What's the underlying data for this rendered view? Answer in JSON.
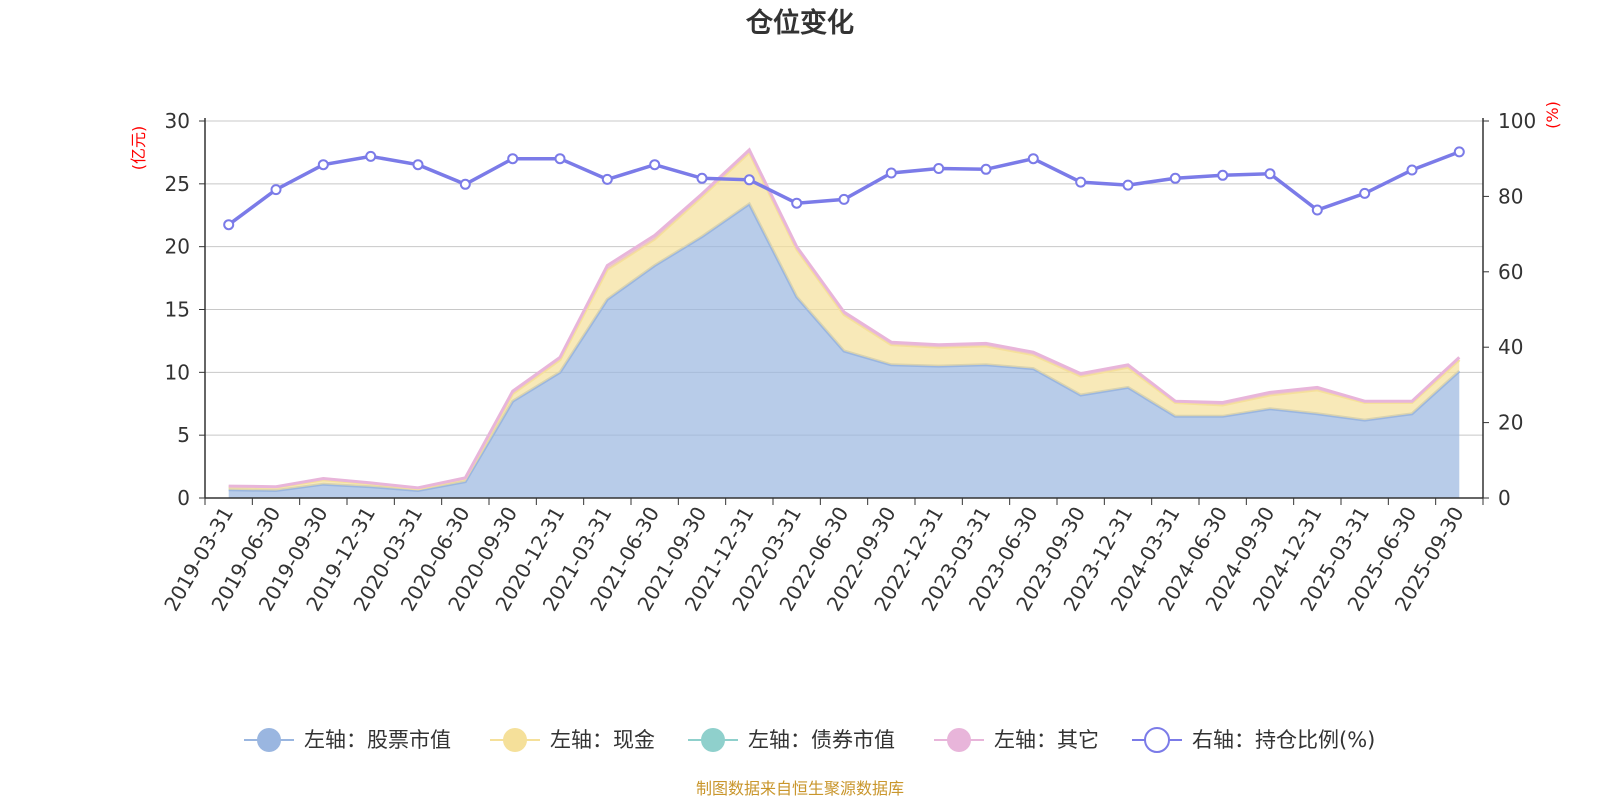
{
  "chart_data": {
    "type": "area",
    "title": "仓位变化",
    "left_axis_unit": "(亿元)",
    "right_axis_unit": "(%)",
    "left_ylim": [
      0,
      30
    ],
    "left_yticks": [
      0,
      5,
      10,
      15,
      20,
      25,
      30
    ],
    "right_ylim": [
      0,
      100
    ],
    "right_yticks": [
      0,
      20,
      40,
      60,
      80,
      100
    ],
    "categories": [
      "2019-03-31",
      "2019-06-30",
      "2019-09-30",
      "2019-12-31",
      "2020-03-31",
      "2020-06-30",
      "2020-09-30",
      "2020-12-31",
      "2021-03-31",
      "2021-06-30",
      "2021-09-30",
      "2021-12-31",
      "2022-03-31",
      "2022-06-30",
      "2022-09-30",
      "2022-12-31",
      "2023-03-31",
      "2023-06-30",
      "2023-09-30",
      "2023-12-31",
      "2024-03-31",
      "2024-06-30",
      "2024-09-30",
      "2024-12-31",
      "2025-03-31",
      "2025-06-30",
      "2025-09-30"
    ],
    "series": [
      {
        "name": "左轴：股票市值",
        "axis": "left",
        "kind": "stacked-area",
        "color": "#9ab6e0",
        "values": [
          0.65,
          0.6,
          1.1,
          0.9,
          0.6,
          1.3,
          7.7,
          10.0,
          15.8,
          18.5,
          20.8,
          23.4,
          16.0,
          11.7,
          10.6,
          10.5,
          10.6,
          10.3,
          8.2,
          8.8,
          6.5,
          6.5,
          7.1,
          6.7,
          6.2,
          6.7,
          10.1
        ]
      },
      {
        "name": "左轴：现金",
        "axis": "left",
        "kind": "stacked-area",
        "color": "#f5e09a",
        "values": [
          0.25,
          0.25,
          0.35,
          0.25,
          0.15,
          0.25,
          0.6,
          1.0,
          2.4,
          2.1,
          3.2,
          4.1,
          3.8,
          2.9,
          1.6,
          1.5,
          1.5,
          1.1,
          1.5,
          1.6,
          1.1,
          0.9,
          1.1,
          1.9,
          1.4,
          0.9,
          0.9
        ]
      },
      {
        "name": "左轴：债券市值",
        "axis": "left",
        "kind": "stacked-area",
        "color": "#8fd0cc",
        "values": [
          0,
          0,
          0,
          0,
          0,
          0,
          0,
          0,
          0,
          0,
          0,
          0,
          0,
          0,
          0,
          0,
          0,
          0,
          0,
          0,
          0,
          0,
          0,
          0,
          0,
          0,
          0
        ]
      },
      {
        "name": "左轴：其它",
        "axis": "left",
        "kind": "stacked-area",
        "color": "#e8b5da",
        "values": [
          0.05,
          0.05,
          0.1,
          0.05,
          0.05,
          0.05,
          0.2,
          0.2,
          0.3,
          0.3,
          0.2,
          0.2,
          0.2,
          0.2,
          0.2,
          0.2,
          0.2,
          0.2,
          0.2,
          0.2,
          0.1,
          0.2,
          0.2,
          0.2,
          0.1,
          0.1,
          0.2
        ]
      },
      {
        "name": "右轴：持仓比例(%)",
        "axis": "right",
        "kind": "line",
        "color": "#7b7be8",
        "values": [
          72.5,
          81.8,
          88.4,
          90.6,
          88.4,
          83.2,
          90.0,
          90.0,
          84.5,
          88.4,
          84.8,
          84.4,
          78.2,
          79.2,
          86.2,
          87.4,
          87.2,
          90.0,
          83.8,
          83.0,
          84.8,
          85.6,
          86.0,
          76.4,
          80.8,
          87.0,
          91.8
        ]
      }
    ],
    "legend_position": "bottom",
    "grid": true
  },
  "legend_items": [
    "左轴：股票市值",
    "左轴：现金",
    "左轴：债券市值",
    "左轴：其它",
    "右轴：持仓比例(%)"
  ],
  "source_note": "制图数据来自恒生聚源数据库"
}
